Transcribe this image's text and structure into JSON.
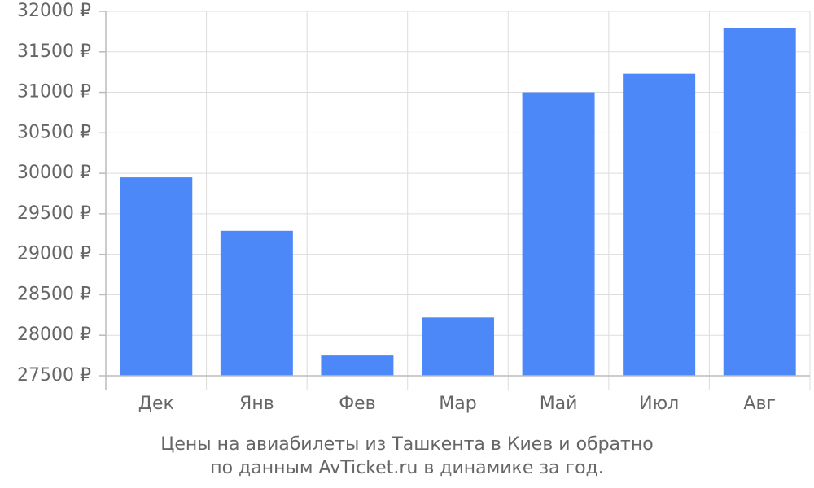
{
  "chart_data": {
    "type": "bar",
    "title": [
      "Цены на авиабилеты из Ташкента в Киев и обратно",
      "по данным AvTicket.ru в динамике за год."
    ],
    "categories": [
      "Дек",
      "Янв",
      "Фев",
      "Мар",
      "Май",
      "Июл",
      "Авг"
    ],
    "values": [
      29950,
      29290,
      27750,
      28220,
      31000,
      31230,
      31790
    ],
    "color": "#4d88f9",
    "ylim": [
      27500,
      32000
    ],
    "yticks": [
      {
        "value": 27500,
        "label": "27500 ₽"
      },
      {
        "value": 28000,
        "label": "28000 ₽"
      },
      {
        "value": 28500,
        "label": "28500 ₽"
      },
      {
        "value": 29000,
        "label": "29000 ₽"
      },
      {
        "value": 29500,
        "label": "29500 ₽"
      },
      {
        "value": 30000,
        "label": "30000 ₽"
      },
      {
        "value": 30500,
        "label": "30500 ₽"
      },
      {
        "value": 31000,
        "label": "31000 ₽"
      },
      {
        "value": 31500,
        "label": "31500 ₽"
      },
      {
        "value": 32000,
        "label": "32000 ₽"
      }
    ],
    "grid": true
  }
}
